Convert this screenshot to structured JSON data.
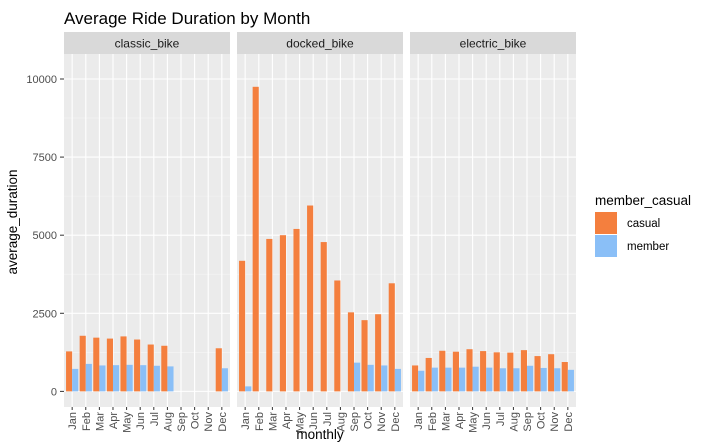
{
  "chart_data": {
    "type": "bar",
    "title": "Average Ride Duration by Month",
    "xlabel": "monthly",
    "ylabel": "average_duration",
    "ylim": [
      -500,
      10800
    ],
    "yticks": [
      0,
      2500,
      5000,
      7500,
      10000
    ],
    "ytick_labels": [
      "0",
      "2500",
      "5000",
      "7500",
      "10000"
    ],
    "grid": true,
    "legend": {
      "title": "member_casual",
      "position": "right",
      "entries": [
        {
          "label": "casual",
          "color": "#F47F3E"
        },
        {
          "label": "member",
          "color": "#8ABFF7"
        }
      ]
    },
    "categories": [
      "Jan",
      "Feb",
      "Mar",
      "Apr",
      "May",
      "Jun",
      "Jul",
      "Aug",
      "Sep",
      "Oct",
      "Nov",
      "Dec"
    ],
    "panels": [
      {
        "name": "classic_bike",
        "series": [
          {
            "name": "casual",
            "values": [
              1280,
              1780,
              1720,
              1690,
              1760,
              1660,
              1500,
              1460,
              null,
              null,
              null,
              1380
            ]
          },
          {
            "name": "member",
            "values": [
              720,
              880,
              830,
              840,
              850,
              840,
              820,
              800,
              null,
              null,
              null,
              740
            ]
          }
        ]
      },
      {
        "name": "docked_bike",
        "series": [
          {
            "name": "casual",
            "values": [
              4180,
              9750,
              4880,
              5000,
              5200,
              5950,
              4780,
              3550,
              2530,
              2280,
              2470,
              3460
            ]
          },
          {
            "name": "member",
            "values": [
              160,
              null,
              null,
              null,
              null,
              null,
              null,
              null,
              920,
              850,
              830,
              720
            ]
          }
        ]
      },
      {
        "name": "electric_bike",
        "series": [
          {
            "name": "casual",
            "values": [
              830,
              1070,
              1300,
              1270,
              1350,
              1290,
              1250,
              1240,
              1320,
              1130,
              1190,
              940
            ]
          },
          {
            "name": "member",
            "values": [
              660,
              760,
              760,
              760,
              790,
              760,
              740,
              740,
              820,
              750,
              740,
              690
            ]
          }
        ]
      }
    ]
  }
}
